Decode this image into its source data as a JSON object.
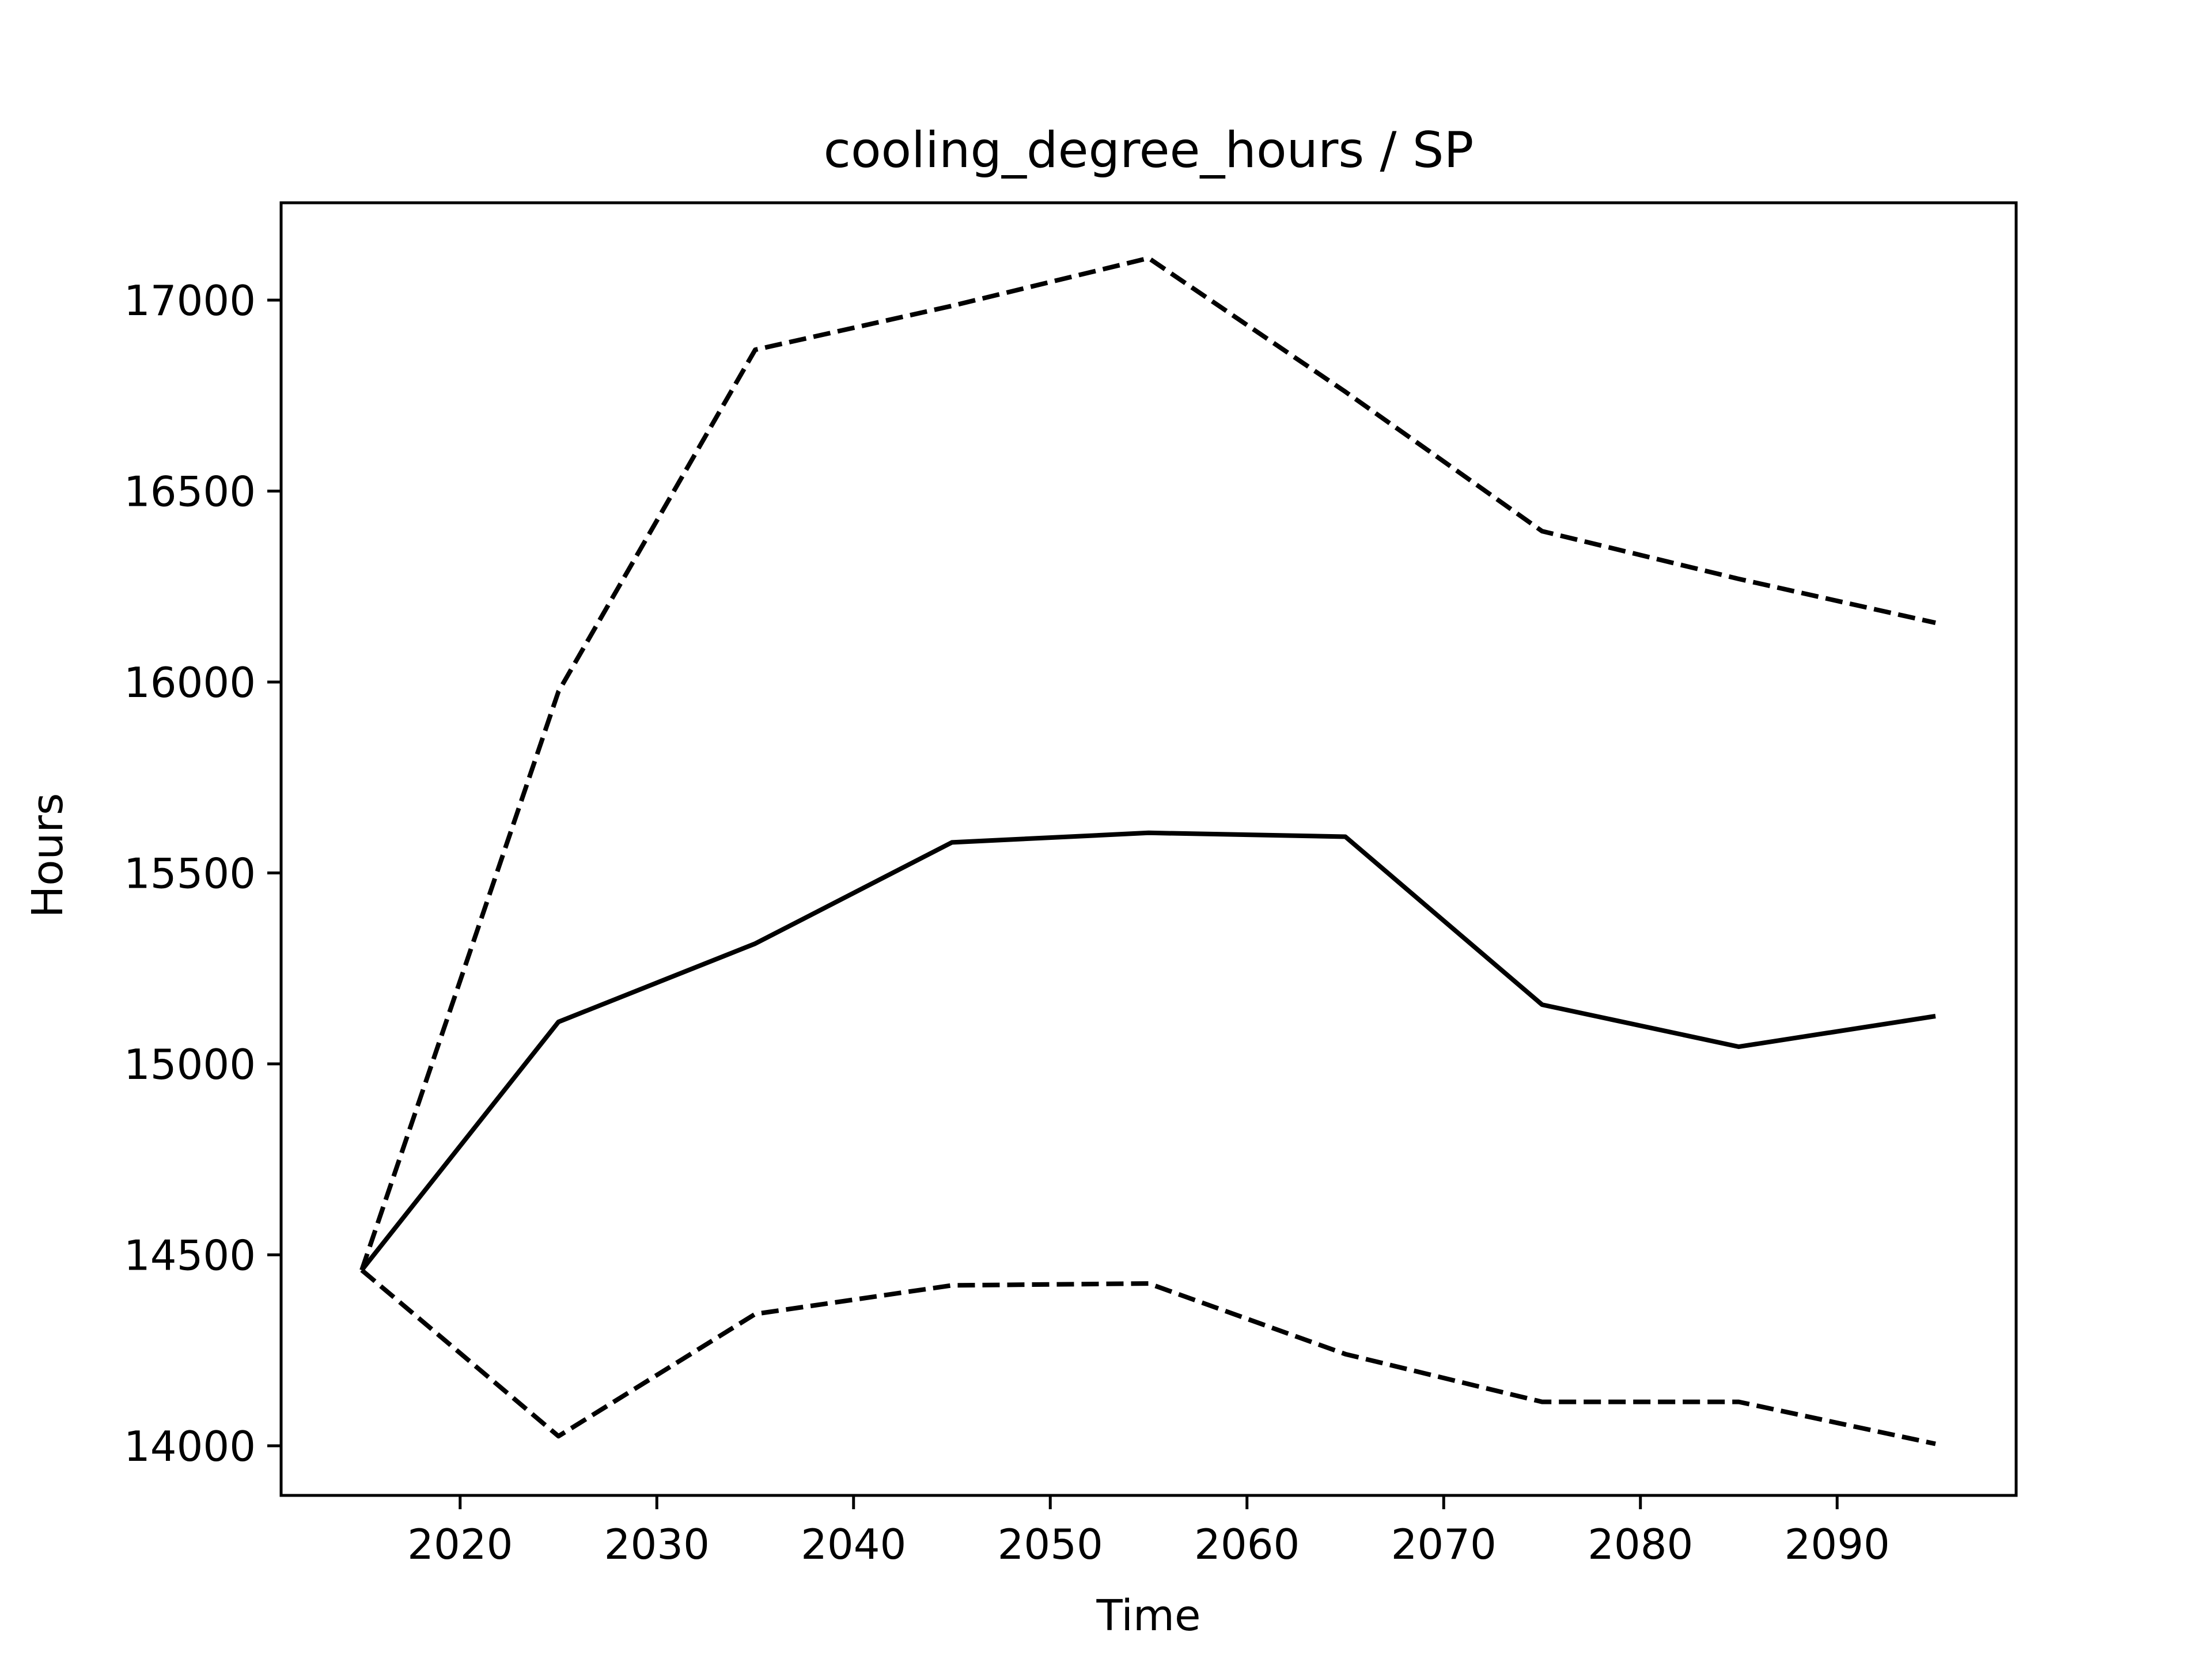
{
  "chart_data": {
    "type": "line",
    "title": "cooling_degree_hours / SP",
    "xlabel": "Time",
    "ylabel": "Hours",
    "xlim": [
      2010.9,
      2099.1
    ],
    "ylim": [
      13870,
      17255
    ],
    "grid": false,
    "legend": "none",
    "xticks": [
      2020,
      2030,
      2040,
      2050,
      2060,
      2070,
      2080,
      2090
    ],
    "yticks": [
      14000,
      14500,
      15000,
      15500,
      16000,
      16500,
      17000
    ],
    "x": [
      2015,
      2025,
      2035,
      2045,
      2055,
      2065,
      2075,
      2085,
      2095
    ],
    "series": [
      {
        "style": "solid",
        "color": "#000000",
        "values": [
          14460,
          15110,
          15315,
          15580,
          15605,
          15595,
          15155,
          15045,
          15125
        ]
      },
      {
        "style": "dashed",
        "color": "#000000",
        "values": [
          14460,
          15975,
          16870,
          16985,
          17110,
          16760,
          16395,
          16270,
          16155
        ]
      },
      {
        "style": "dashed",
        "color": "#000000",
        "values": [
          14460,
          14025,
          14345,
          14420,
          14425,
          14240,
          14115,
          14115,
          14005
        ]
      }
    ]
  }
}
